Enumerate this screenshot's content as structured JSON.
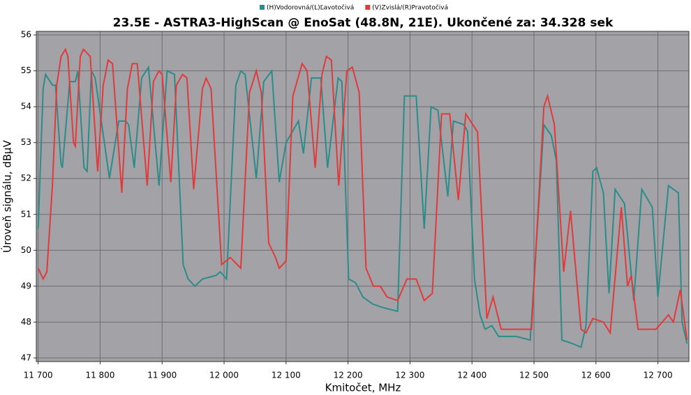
{
  "chart_data": {
    "type": "line",
    "title": "23.5E - ASTRA3-HighScan @ EnoSat (48.8N, 21E). Ukončené za: 34.328 sek",
    "x_label": "Kmitočet, MHz",
    "y_label": "Úroveň signálu, dBµV",
    "xlim": [
      11697,
      12750
    ],
    "ylim": [
      46.9,
      56.1
    ],
    "xticks": [
      {
        "value": 11700,
        "label": "11 700"
      },
      {
        "value": 11800,
        "label": "11 800"
      },
      {
        "value": 11900,
        "label": "11 900"
      },
      {
        "value": 12000,
        "label": "12 000"
      },
      {
        "value": 12100,
        "label": "12 100"
      },
      {
        "value": 12200,
        "label": "12 200"
      },
      {
        "value": 12300,
        "label": "12 300"
      },
      {
        "value": 12400,
        "label": "12 400"
      },
      {
        "value": 12500,
        "label": "12 500"
      },
      {
        "value": 12600,
        "label": "12 600"
      },
      {
        "value": 12700,
        "label": "12 700"
      }
    ],
    "yticks": [
      47,
      48,
      49,
      50,
      51,
      52,
      53,
      54,
      55,
      56
    ],
    "grid": true,
    "series": [
      {
        "name": "(H)Vodorovná/(L)Ľavotočivá",
        "color": "#2b8c8a",
        "x": [
          11700,
          11708,
          11712,
          11723,
          11728,
          11737,
          11739,
          11751,
          11760,
          11764,
          11774,
          11779,
          11786,
          11792,
          11815,
          11830,
          11841,
          11846,
          11855,
          11867,
          11878,
          11895,
          11908,
          11920,
          11934,
          11942,
          11953,
          11965,
          11987,
          11994,
          12004,
          12019,
          12027,
          12034,
          12052,
          12064,
          12077,
          12089,
          12100,
          12120,
          12128,
          12141,
          12156,
          12167,
          12184,
          12190,
          12201,
          12212,
          12224,
          12240,
          12257,
          12280,
          12291,
          12310,
          12323,
          12334,
          12345,
          12361,
          12370,
          12387,
          12393,
          12404,
          12413,
          12421,
          12432,
          12443,
          12471,
          12494,
          12516,
          12528,
          12536,
          12545,
          12562,
          12576,
          12584,
          12595,
          12601,
          12612,
          12621,
          12631,
          12646,
          12661,
          12674,
          12691,
          12700,
          12717,
          12733,
          12739,
          12747
        ],
        "values": [
          50.6,
          54.5,
          54.9,
          54.6,
          54.6,
          52.4,
          52.3,
          54.7,
          54.7,
          55.0,
          52.3,
          52.2,
          55.0,
          54.8,
          52.0,
          53.6,
          53.6,
          53.5,
          52.3,
          54.8,
          55.1,
          51.8,
          55.0,
          54.9,
          49.6,
          49.2,
          49.0,
          49.2,
          49.3,
          49.4,
          49.2,
          54.6,
          55.0,
          54.9,
          52.0,
          54.7,
          55.0,
          51.9,
          53.0,
          53.6,
          52.7,
          54.8,
          54.8,
          52.3,
          54.8,
          54.7,
          49.2,
          49.1,
          48.7,
          48.5,
          48.4,
          48.3,
          54.3,
          54.3,
          50.6,
          54.0,
          53.9,
          51.5,
          53.6,
          53.5,
          53.3,
          49.2,
          48.2,
          47.8,
          47.9,
          47.6,
          47.6,
          47.5,
          53.5,
          53.2,
          52.5,
          47.5,
          47.4,
          47.3,
          47.9,
          52.2,
          52.3,
          51.6,
          48.8,
          51.7,
          51.3,
          48.6,
          51.7,
          51.2,
          48.7,
          51.8,
          51.6,
          48.0,
          47.4
        ]
      },
      {
        "name": "(V)Zvislá/(R)Pravotočivá",
        "color": "#e23a3a",
        "x": [
          11700,
          11708,
          11714,
          11723,
          11730,
          11737,
          11744,
          11748,
          11757,
          11760,
          11768,
          11773,
          11784,
          11796,
          11805,
          11813,
          11820,
          11835,
          11844,
          11852,
          11860,
          11876,
          11886,
          11895,
          11900,
          11914,
          11923,
          11933,
          11940,
          11951,
          11965,
          11971,
          11979,
          11996,
          12010,
          12027,
          12041,
          12052,
          12060,
          12072,
          12083,
          12089,
          12100,
          12111,
          12126,
          12134,
          12147,
          12158,
          12165,
          12173,
          12185,
          12198,
          12207,
          12218,
          12229,
          12241,
          12252,
          12263,
          12280,
          12295,
          12310,
          12323,
          12336,
          12351,
          12364,
          12378,
          12390,
          12409,
          12424,
          12434,
          12447,
          12471,
          12496,
          12516,
          12522,
          12533,
          12548,
          12559,
          12576,
          12584,
          12595,
          12612,
          12623,
          12641,
          12651,
          12657,
          12668,
          12697,
          12717,
          12725,
          12736,
          12747
        ],
        "values": [
          49.5,
          49.2,
          49.4,
          51.8,
          54.6,
          55.4,
          55.6,
          55.4,
          53.0,
          52.9,
          55.4,
          55.6,
          55.4,
          52.2,
          54.6,
          55.3,
          55.2,
          51.6,
          54.5,
          55.2,
          55.2,
          51.8,
          54.7,
          55.0,
          54.9,
          51.9,
          54.6,
          54.9,
          54.8,
          51.7,
          54.5,
          54.8,
          54.5,
          49.6,
          49.8,
          49.5,
          54.4,
          55.0,
          54.4,
          50.2,
          49.8,
          49.5,
          49.7,
          54.3,
          55.2,
          55.0,
          52.3,
          54.9,
          55.4,
          55.3,
          51.8,
          55.0,
          55.1,
          54.4,
          49.5,
          49.0,
          49.0,
          48.7,
          48.6,
          49.2,
          49.2,
          48.6,
          48.8,
          53.8,
          53.8,
          51.4,
          53.8,
          53.3,
          48.1,
          48.7,
          47.8,
          47.8,
          47.8,
          54.0,
          54.3,
          53.5,
          49.4,
          51.1,
          47.8,
          47.7,
          48.1,
          48.0,
          47.7,
          51.2,
          49.0,
          49.3,
          47.8,
          47.8,
          48.2,
          48.0,
          48.9,
          47.5
        ]
      }
    ]
  }
}
